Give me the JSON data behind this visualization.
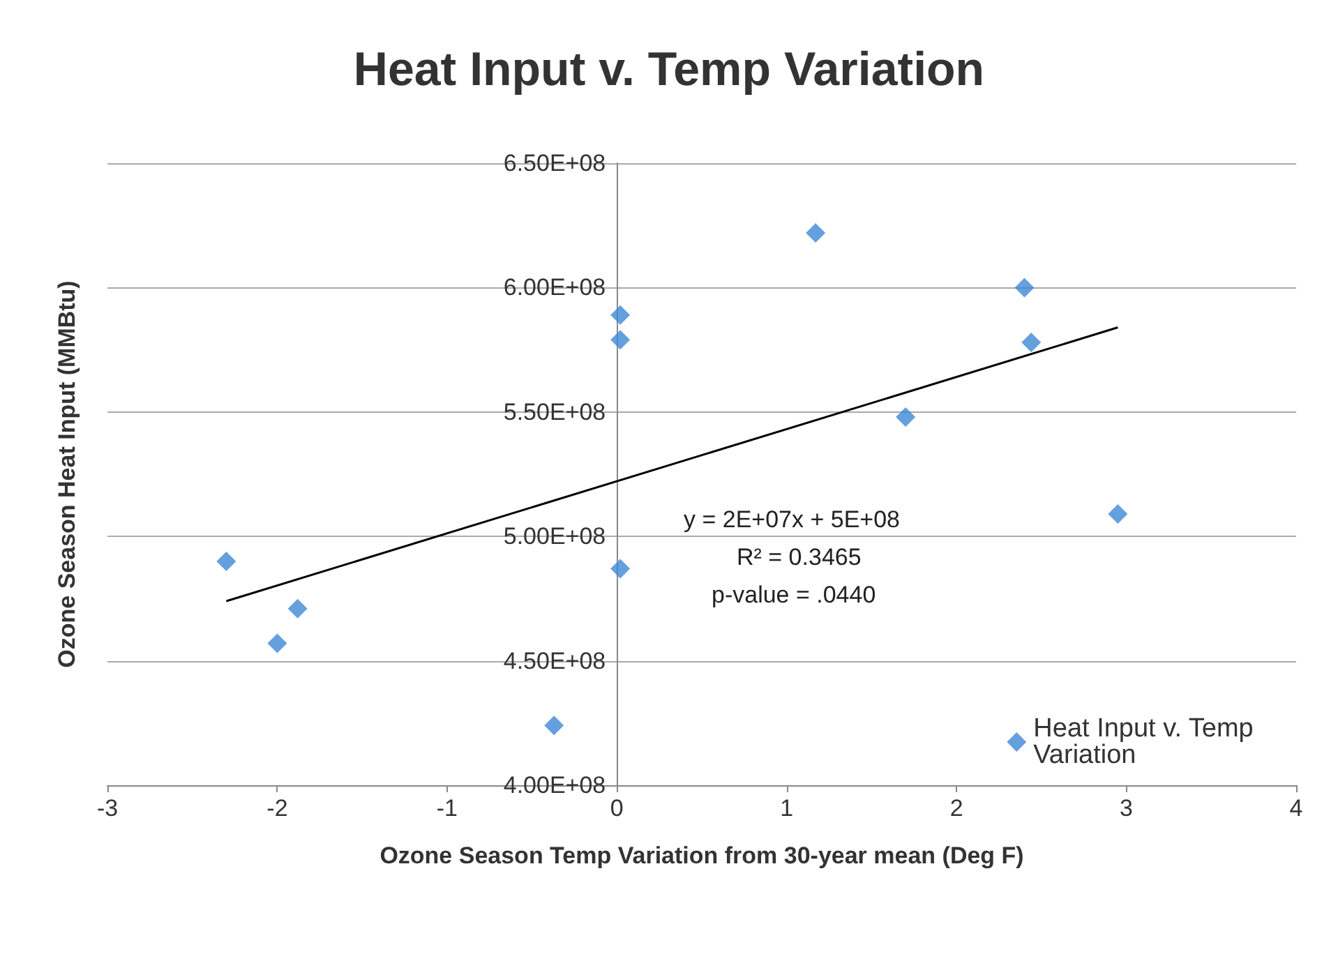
{
  "chart_data": {
    "type": "scatter",
    "title": "Heat Input v. Temp Variation",
    "xlabel": "Ozone Season Temp Variation from 30-year mean (Deg F)",
    "ylabel": "Ozone Season Heat Input (MMBtu)",
    "xlim": [
      -3,
      4
    ],
    "xticks": [
      -3,
      -2,
      -1,
      0,
      1,
      2,
      3,
      4
    ],
    "ylim": [
      400000000,
      650000000
    ],
    "yticks": [
      {
        "value": 400000000,
        "label": "4.00E+08"
      },
      {
        "value": 450000000,
        "label": "4.50E+08"
      },
      {
        "value": 500000000,
        "label": "5.00E+08"
      },
      {
        "value": 550000000,
        "label": "5.50E+08"
      },
      {
        "value": 600000000,
        "label": "6.00E+08"
      },
      {
        "value": 650000000,
        "label": "6.50E+08"
      }
    ],
    "grid": "y",
    "legend": "bottom right",
    "marker": "diamond",
    "series": [
      {
        "name": "Heat Input v. Temp Variation",
        "color": "#3f88d6",
        "x": [
          -2.3,
          -1.88,
          -2.0,
          -0.37,
          0.02,
          0.02,
          0.02,
          1.17,
          1.7,
          2.4,
          2.44,
          2.95
        ],
        "values": [
          490000000,
          471000000,
          457000000,
          424000000,
          487000000,
          589000000,
          579000000,
          622000000,
          548000000,
          600000000,
          578000000,
          509000000
        ]
      },
      {
        "type": "line",
        "marker": "none",
        "color": "#000000",
        "x": [
          -2.3,
          2.95
        ],
        "values": [
          474000000,
          584000000
        ]
      }
    ],
    "annotations": [
      "y = 2E+07x + 5E+08",
      "R² = 0.3465",
      "p-value = .0440"
    ]
  }
}
